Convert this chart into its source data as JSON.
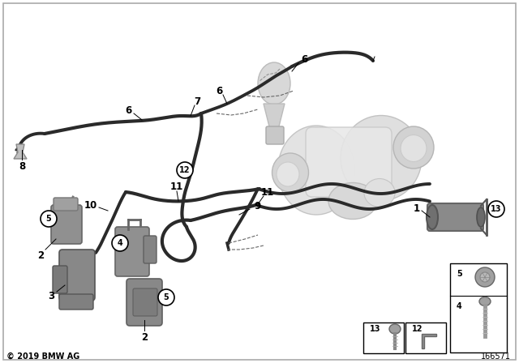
{
  "bg_color": "#ffffff",
  "copyright": "© 2019 BMW AG",
  "diagram_number": "166571",
  "fig_width": 6.4,
  "fig_height": 4.48,
  "dpi": 100,
  "tube_color": "#2a2a2a",
  "tube_lw": 2.5,
  "ghost_color": "#d0d0d0",
  "ghost_ec": "#b0b0b0",
  "label_fs": 8,
  "circle_r": 9,
  "border_lw": 1.2,
  "border_color": "#aaaaaa"
}
